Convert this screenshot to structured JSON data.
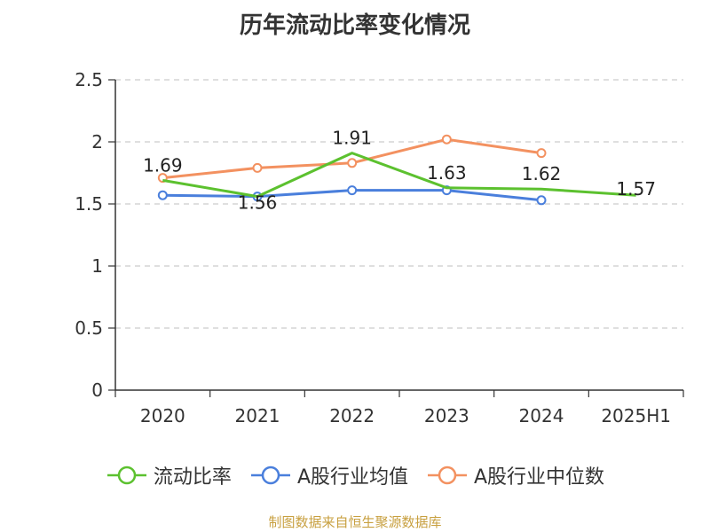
{
  "chart_data": {
    "type": "line",
    "title": "历年流动比率变化情况",
    "categories": [
      "2020",
      "2021",
      "2022",
      "2023",
      "2024",
      "2025H1"
    ],
    "ylim": [
      0,
      2.5
    ],
    "yticks": [
      "0",
      "0.5",
      "1",
      "1.5",
      "2",
      "2.5"
    ],
    "ytick_values": [
      0,
      0.5,
      1,
      1.5,
      2,
      2.5
    ],
    "grid": true,
    "legend_position": "bottom",
    "series": [
      {
        "name": "流动比率",
        "color": "#5cc12f",
        "values": [
          1.69,
          1.56,
          1.91,
          1.63,
          1.62,
          1.57
        ],
        "labels": [
          "1.69",
          "1.56",
          "1.91",
          "1.63",
          "1.62",
          "1.57"
        ]
      },
      {
        "name": "A股行业均值",
        "color": "#4a7fdc",
        "values": [
          1.57,
          1.56,
          1.61,
          1.61,
          1.53,
          null
        ]
      },
      {
        "name": "A股行业中位数",
        "color": "#f39160",
        "values": [
          1.71,
          1.79,
          1.83,
          2.02,
          1.91,
          null
        ]
      }
    ],
    "source": "制图数据来自恒生聚源数据库"
  }
}
